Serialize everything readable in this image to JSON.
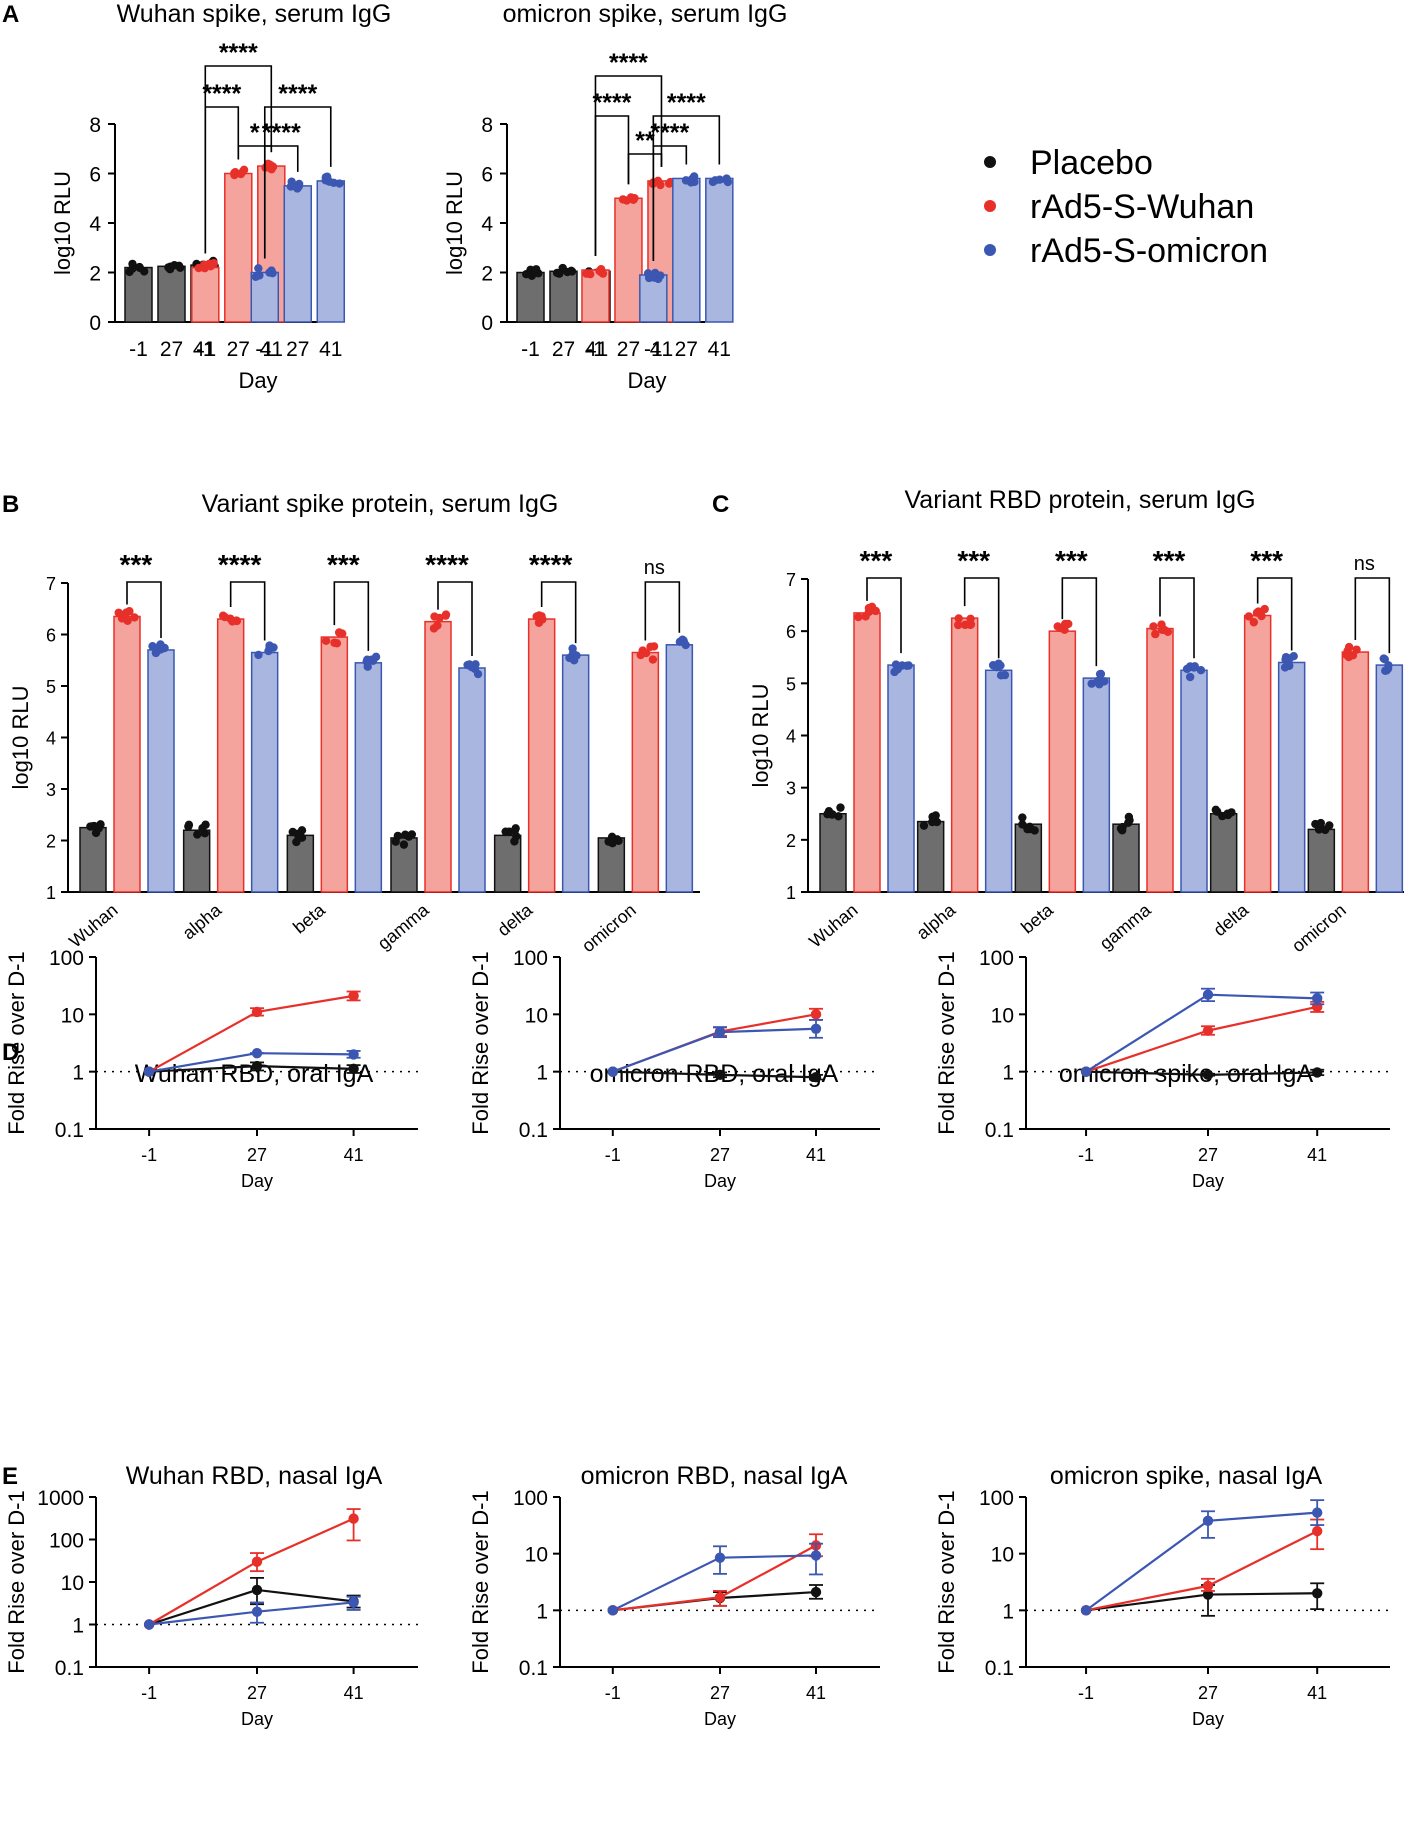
{
  "figure_title": "rAd5 vaccine antibody responses",
  "colors": {
    "placebo": "#111111",
    "wuhan": "#e8302a",
    "omicron": "#3b57b2",
    "wuhan_fill": "#f4a49c",
    "omicron_fill": "#a9b6e0",
    "placebo_fill": "#6e6e6e"
  },
  "legend": {
    "placebo": "Placebo",
    "wuhan": "rAd5-S-Wuhan",
    "omicron": "rAd5-S-omicron"
  },
  "labels": {
    "A": "A",
    "B": "B",
    "C": "C",
    "D": "D",
    "E": "E"
  },
  "chart_data": [
    {
      "panel": "A",
      "type": "bar",
      "title": "Wuhan spike, serum IgG",
      "xlabel": "Day",
      "ylabel": "log10 RLU",
      "ylim": [
        0,
        8
      ],
      "yticks": [
        "0",
        "2",
        "4",
        "6",
        "8"
      ],
      "groups": [
        "Placebo",
        "rAd5-S-Wuhan",
        "rAd5-S-omicron"
      ],
      "categories": [
        "-1",
        "27",
        "41"
      ],
      "series": [
        {
          "name": "Placebo",
          "values": [
            2.2,
            2.25,
            2.3
          ]
        },
        {
          "name": "rAd5-S-Wuhan",
          "values": [
            2.2,
            6.0,
            6.3
          ]
        },
        {
          "name": "rAd5-S-omicron",
          "values": [
            2.0,
            5.5,
            5.7
          ]
        }
      ],
      "significance": [
        "****",
        "****",
        "*",
        "****",
        "****"
      ]
    },
    {
      "panel": "A2",
      "type": "bar",
      "title": "omicron spike, serum IgG",
      "xlabel": "Day",
      "ylabel": "log10 RLU",
      "ylim": [
        0,
        8
      ],
      "yticks": [
        "0",
        "2",
        "4",
        "6",
        "8"
      ],
      "groups": [
        "Placebo",
        "rAd5-S-Wuhan",
        "rAd5-S-omicron"
      ],
      "categories": [
        "-1",
        "27",
        "41"
      ],
      "series": [
        {
          "name": "Placebo",
          "values": [
            2.0,
            2.05,
            2.05
          ]
        },
        {
          "name": "rAd5-S-Wuhan",
          "values": [
            2.1,
            5.0,
            5.7
          ]
        },
        {
          "name": "rAd5-S-omicron",
          "values": [
            1.9,
            5.8,
            5.8
          ]
        }
      ],
      "significance": [
        "****",
        "****",
        "**",
        "****",
        "****"
      ]
    },
    {
      "panel": "B",
      "type": "bar",
      "title": "Variant spike protein, serum IgG",
      "ylabel": "log10 RLU",
      "ylim": [
        1,
        7
      ],
      "yticks": [
        "1",
        "2",
        "3",
        "4",
        "5",
        "6",
        "7"
      ],
      "categories": [
        "Wuhan",
        "alpha",
        "beta",
        "gamma",
        "delta",
        "omicron"
      ],
      "series": [
        {
          "name": "Placebo",
          "values": [
            2.25,
            2.2,
            2.1,
            2.05,
            2.1,
            2.05
          ]
        },
        {
          "name": "rAd5-S-Wuhan",
          "values": [
            6.35,
            6.3,
            5.95,
            6.25,
            6.3,
            5.65
          ]
        },
        {
          "name": "rAd5-S-omicron",
          "values": [
            5.7,
            5.65,
            5.45,
            5.35,
            5.6,
            5.8
          ]
        }
      ],
      "significance": [
        "***",
        "****",
        "***",
        "****",
        "****",
        "ns"
      ]
    },
    {
      "panel": "C",
      "type": "bar",
      "title": "Variant RBD protein, serum IgG",
      "ylabel": "log10 RLU",
      "ylim": [
        1,
        7
      ],
      "yticks": [
        "1",
        "2",
        "3",
        "4",
        "5",
        "6",
        "7"
      ],
      "categories": [
        "Wuhan",
        "alpha",
        "beta",
        "gamma",
        "delta",
        "omicron"
      ],
      "series": [
        {
          "name": "Placebo",
          "values": [
            2.5,
            2.35,
            2.3,
            2.3,
            2.5,
            2.2
          ]
        },
        {
          "name": "rAd5-S-Wuhan",
          "values": [
            6.35,
            6.25,
            6.0,
            6.05,
            6.3,
            5.6
          ]
        },
        {
          "name": "rAd5-S-omicron",
          "values": [
            5.35,
            5.25,
            5.1,
            5.25,
            5.4,
            5.35
          ]
        }
      ],
      "significance": [
        "***",
        "***",
        "***",
        "***",
        "***",
        "ns"
      ]
    },
    {
      "panel": "D1",
      "type": "line",
      "title": "Wuhan RBD, oral IgA",
      "xlabel": "Day",
      "ylabel": "Fold Rise over D-1",
      "x": [
        "-1",
        "27",
        "41"
      ],
      "yscale": "log",
      "ylim": [
        0.1,
        100
      ],
      "yticks": [
        "0.1",
        "1",
        "10",
        "100"
      ],
      "reference_line": 1,
      "series": [
        {
          "name": "Placebo",
          "values": [
            1,
            1.25,
            1.12
          ],
          "err_low": [
            1,
            1.05,
            0.95
          ],
          "err_high": [
            1,
            1.45,
            1.3
          ]
        },
        {
          "name": "rAd5-S-Wuhan",
          "values": [
            1,
            11,
            21
          ],
          "err_low": [
            1,
            9.5,
            17.5
          ],
          "err_high": [
            1,
            12.8,
            25
          ]
        },
        {
          "name": "rAd5-S-omicron",
          "values": [
            1,
            2.1,
            2.0
          ],
          "err_low": [
            1,
            2.1,
            1.75
          ],
          "err_high": [
            1,
            2.1,
            2.3
          ]
        }
      ]
    },
    {
      "panel": "D2",
      "type": "line",
      "title": "omicron RBD, oral IgA",
      "xlabel": "Day",
      "ylabel": "Fold Rise over D-1",
      "x": [
        "-1",
        "27",
        "41"
      ],
      "yscale": "log",
      "ylim": [
        0.1,
        100
      ],
      "yticks": [
        "0.1",
        "1",
        "10",
        "100"
      ],
      "reference_line": 1,
      "series": [
        {
          "name": "Placebo",
          "values": [
            1,
            0.88,
            0.8
          ],
          "err_low": [
            1,
            0.8,
            0.73
          ],
          "err_high": [
            1,
            0.97,
            0.88
          ]
        },
        {
          "name": "rAd5-S-Wuhan",
          "values": [
            1,
            5.0,
            10.0
          ],
          "err_low": [
            1,
            4.2,
            8.0
          ],
          "err_high": [
            1,
            5.9,
            12.5
          ]
        },
        {
          "name": "rAd5-S-omicron",
          "values": [
            1,
            4.9,
            5.6
          ],
          "err_low": [
            1,
            4.0,
            3.9
          ],
          "err_high": [
            1,
            6.0,
            8.0
          ]
        }
      ]
    },
    {
      "panel": "D3",
      "type": "line",
      "title": "omicron spike, oral IgA",
      "xlabel": "Day",
      "ylabel": "Fold Rise over D-1",
      "x": [
        "-1",
        "27",
        "41"
      ],
      "yscale": "log",
      "ylim": [
        0.1,
        100
      ],
      "yticks": [
        "0.1",
        "1",
        "10",
        "100"
      ],
      "reference_line": 1,
      "series": [
        {
          "name": "Placebo",
          "values": [
            1,
            0.88,
            0.97
          ],
          "err_low": [
            1,
            0.85,
            0.87
          ],
          "err_high": [
            1,
            0.92,
            1.08
          ]
        },
        {
          "name": "rAd5-S-Wuhan",
          "values": [
            1,
            5.2,
            13.5
          ],
          "err_low": [
            1,
            4.4,
            11.0
          ],
          "err_high": [
            1,
            6.2,
            16.5
          ]
        },
        {
          "name": "rAd5-S-omicron",
          "values": [
            1,
            22,
            19
          ],
          "err_low": [
            1,
            17,
            15
          ],
          "err_high": [
            1,
            28,
            24
          ]
        }
      ]
    },
    {
      "panel": "E1",
      "type": "line",
      "title": "Wuhan RBD, nasal IgA",
      "xlabel": "Day",
      "ylabel": "Fold Rise over D-1",
      "x": [
        "-1",
        "27",
        "41"
      ],
      "yscale": "log",
      "ylim": [
        0.1,
        1000
      ],
      "yticks": [
        "0.1",
        "1",
        "10",
        "100",
        "1000"
      ],
      "reference_line": 1,
      "series": [
        {
          "name": "Placebo",
          "values": [
            1,
            6.5,
            3.5
          ],
          "err_low": [
            1,
            3.0,
            2.5
          ],
          "err_high": [
            1,
            12.5,
            4.8
          ]
        },
        {
          "name": "rAd5-S-Wuhan",
          "values": [
            1,
            30,
            310
          ],
          "err_low": [
            1,
            18,
            95
          ],
          "err_high": [
            1,
            48,
            520
          ]
        },
        {
          "name": "rAd5-S-omicron",
          "values": [
            1,
            2.0,
            3.3
          ],
          "err_low": [
            1,
            1.1,
            2.2
          ],
          "err_high": [
            1,
            3.3,
            4.5
          ]
        }
      ]
    },
    {
      "panel": "E2",
      "type": "line",
      "title": "omicron RBD, nasal IgA",
      "xlabel": "Day",
      "ylabel": "Fold Rise over D-1",
      "x": [
        "-1",
        "27",
        "41"
      ],
      "yscale": "log",
      "ylim": [
        0.1,
        100
      ],
      "yticks": [
        "0.1",
        "1",
        "10",
        "100"
      ],
      "reference_line": 1,
      "series": [
        {
          "name": "Placebo",
          "values": [
            1,
            1.65,
            2.1
          ],
          "err_low": [
            1,
            1.2,
            1.6
          ],
          "err_high": [
            1,
            2.1,
            2.8
          ]
        },
        {
          "name": "rAd5-S-Wuhan",
          "values": [
            1,
            1.7,
            14
          ],
          "err_low": [
            1,
            1.2,
            9.0
          ],
          "err_high": [
            1,
            2.2,
            22
          ]
        },
        {
          "name": "rAd5-S-omicron",
          "values": [
            1,
            8.5,
            9.3
          ],
          "err_low": [
            1,
            4.4,
            4.3
          ],
          "err_high": [
            1,
            13.5,
            15
          ]
        }
      ]
    },
    {
      "panel": "E3",
      "type": "line",
      "title": "omicron spike, nasal IgA",
      "xlabel": "Day",
      "ylabel": "Fold Rise over D-1",
      "x": [
        "-1",
        "27",
        "41"
      ],
      "yscale": "log",
      "ylim": [
        0.1,
        100
      ],
      "yticks": [
        "0.1",
        "1",
        "10",
        "100"
      ],
      "reference_line": 1,
      "series": [
        {
          "name": "Placebo",
          "values": [
            1,
            1.9,
            2.0
          ],
          "err_low": [
            1,
            0.8,
            1.05
          ],
          "err_high": [
            1,
            2.8,
            3.0
          ]
        },
        {
          "name": "rAd5-S-Wuhan",
          "values": [
            1,
            2.7,
            25
          ],
          "err_low": [
            1,
            2.2,
            12
          ],
          "err_high": [
            1,
            3.6,
            40
          ]
        },
        {
          "name": "rAd5-S-omicron",
          "values": [
            1,
            38,
            53
          ],
          "err_low": [
            1,
            19,
            32
          ],
          "err_high": [
            1,
            56,
            88
          ]
        }
      ]
    }
  ]
}
